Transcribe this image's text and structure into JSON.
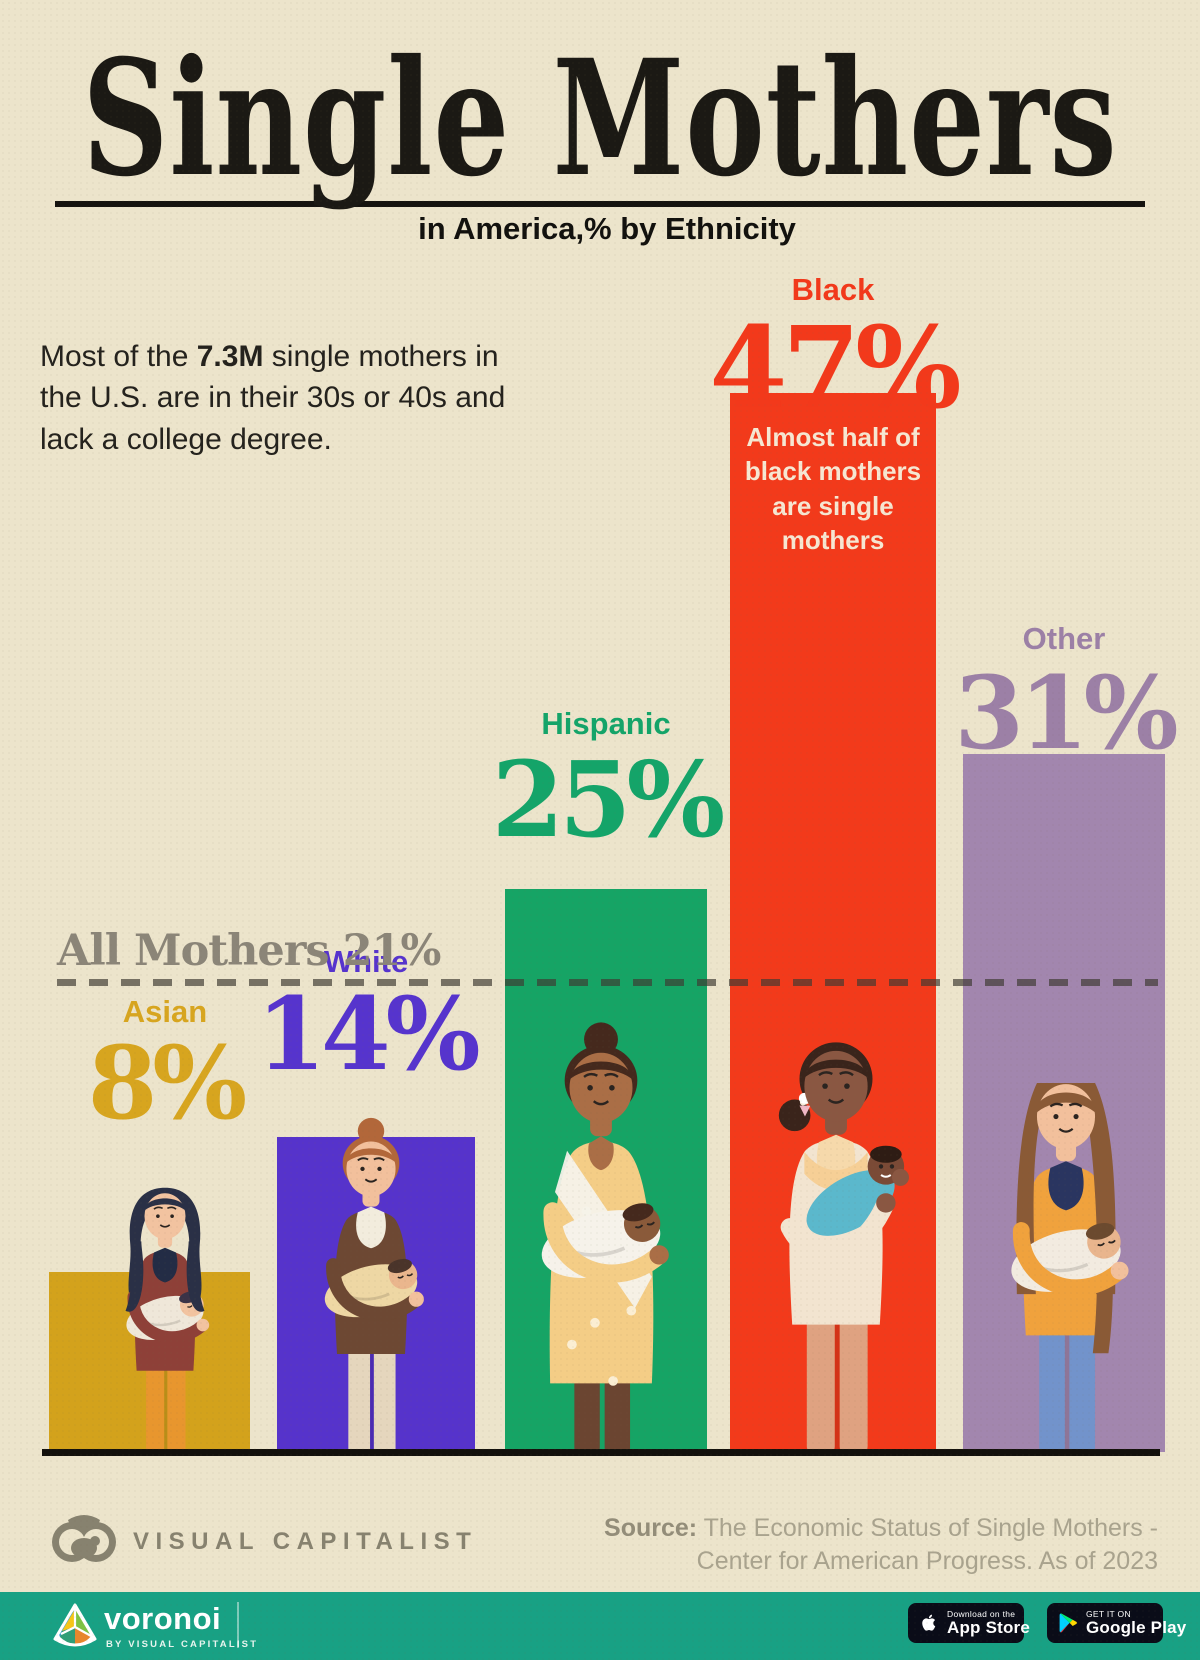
{
  "page": {
    "background": "#ece4cb",
    "appbar_background": "#18a184"
  },
  "header": {
    "title": "Single Mothers",
    "subtitle": "in America,% by Ethnicity"
  },
  "intro": {
    "part1": "Most of the ",
    "highlight": "7.3M",
    "part2": " single mothers in the U.S. are in their 30s or 40s and lack a college degree."
  },
  "chart_data": {
    "type": "bar",
    "title": "Single Mothers in America, % by Ethnicity",
    "categories": [
      "Asian",
      "White",
      "Hispanic",
      "Black",
      "Other"
    ],
    "values": [
      8,
      14,
      25,
      47,
      31
    ],
    "value_labels": [
      "8%",
      "14%",
      "25%",
      "47%",
      "31%"
    ],
    "colors": [
      "#d3a21c",
      "#5633cb",
      "#16a465",
      "#f23a1b",
      "#a286ae"
    ],
    "label_colors": [
      "#d7a51f",
      "#5634cd",
      "#14a469",
      "#f2391b",
      "#9c80a6"
    ],
    "unit": "%",
    "ylim": [
      0,
      47
    ],
    "benchmark": {
      "label": "All Mothers",
      "value": 21,
      "display": "All Mothers 21%",
      "line_style": "dashed",
      "color": "#6b675c"
    },
    "annotation": {
      "category": "Black",
      "text": "Almost half of\nblack mothers\nare single\nmothers"
    },
    "legend": "none",
    "grid": false
  },
  "footer": {
    "brand": "VISUAL CAPITALIST",
    "source_label": "Source:",
    "source_line1": " The Economic Status of Single Mothers -",
    "source_line2": "Center for American Progress. As of 2023"
  },
  "appbar": {
    "brand": "voronoi",
    "brand_sub": "BY VISUAL CAPITALIST",
    "appstore": {
      "line1": "Download on the",
      "line2": "App Store"
    },
    "googleplay": {
      "line1": "GET IT ON",
      "line2": "Google Play"
    }
  }
}
